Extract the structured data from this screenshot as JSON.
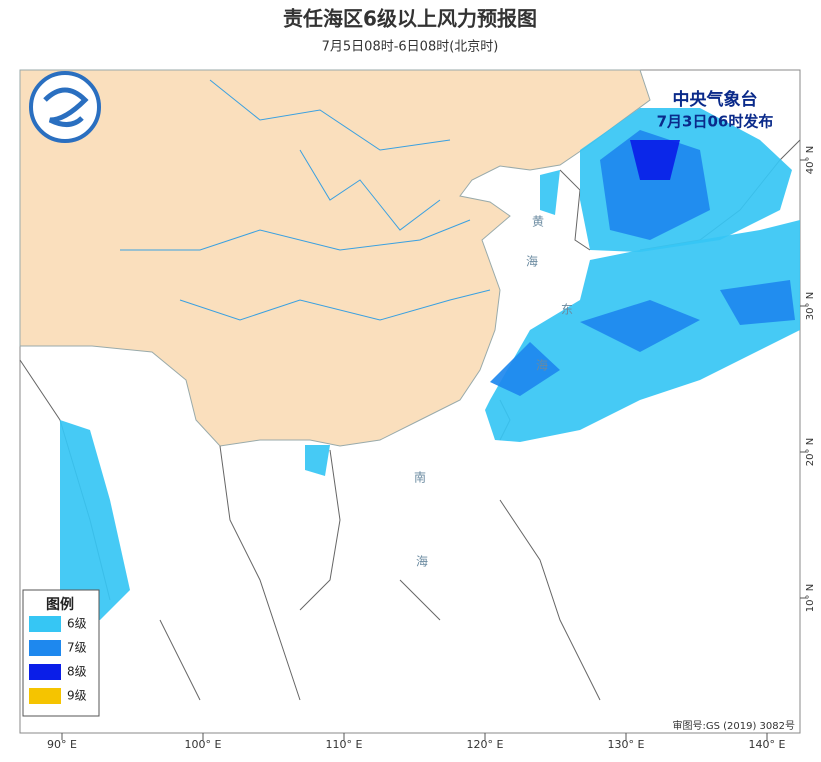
{
  "header": {
    "title": "责任海区6级以上风力预报图",
    "subtitle": "7月5日08时-6日08时(北京时)"
  },
  "issuer": {
    "name": "中央气象台",
    "time": "7月3日06时发布"
  },
  "map": {
    "lon_labels": [
      "90° E",
      "100° E",
      "110° E",
      "120° E",
      "130° E",
      "140° E"
    ],
    "lat_labels": [
      "40° N",
      "30° N",
      "20° N",
      "10° N"
    ],
    "sea_labels": [
      "黄",
      "海",
      "东",
      "海",
      "南",
      "海"
    ]
  },
  "legend": {
    "title": "图例",
    "items": [
      {
        "label": "6级",
        "color": "#36c6f4"
      },
      {
        "label": "7级",
        "color": "#1e88ee"
      },
      {
        "label": "8级",
        "color": "#0a1ee8"
      },
      {
        "label": "9级",
        "color": "#f5c400"
      }
    ]
  },
  "footer": {
    "approval": "审图号:GS (2019) 3082号"
  }
}
